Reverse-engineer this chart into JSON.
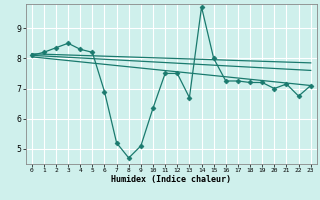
{
  "xlabel": "Humidex (Indice chaleur)",
  "bg_color": "#cff0ec",
  "grid_color": "#ffffff",
  "line_color": "#1a7a6e",
  "xlim": [
    -0.5,
    23.5
  ],
  "ylim": [
    4.5,
    9.8
  ],
  "yticks": [
    5,
    6,
    7,
    8,
    9
  ],
  "xticks": [
    0,
    1,
    2,
    3,
    4,
    5,
    6,
    7,
    8,
    9,
    10,
    11,
    12,
    13,
    14,
    15,
    16,
    17,
    18,
    19,
    20,
    21,
    22,
    23
  ],
  "series1_x": [
    0,
    1,
    2,
    3,
    4,
    5,
    6,
    7,
    8,
    9,
    10,
    11,
    12,
    13,
    14,
    15,
    16,
    17,
    18,
    19,
    20,
    21,
    22,
    23
  ],
  "series1_y": [
    8.1,
    8.2,
    8.35,
    8.5,
    8.3,
    8.2,
    6.9,
    5.2,
    4.7,
    5.1,
    6.35,
    7.5,
    7.5,
    6.7,
    9.7,
    8.0,
    7.25,
    7.25,
    7.2,
    7.2,
    7.0,
    7.15,
    6.75,
    7.1
  ],
  "trend1_x": [
    0,
    23
  ],
  "trend1_y": [
    8.15,
    7.85
  ],
  "trend2_x": [
    0,
    23
  ],
  "trend2_y": [
    8.1,
    7.6
  ],
  "trend3_x": [
    0,
    23
  ],
  "trend3_y": [
    8.05,
    7.1
  ]
}
